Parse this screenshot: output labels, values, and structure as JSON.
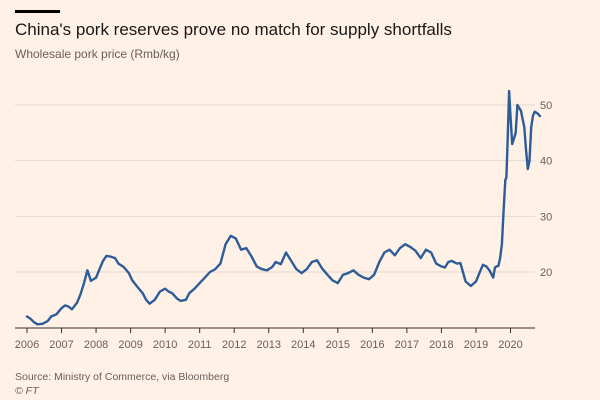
{
  "header": {
    "title": "China's pork reserves prove no match for supply shortfalls",
    "subtitle": "Wholesale pork price (Rmb/kg)"
  },
  "footer": {
    "source": "Source: Ministry of Commerce, via Bloomberg",
    "brand": "© FT"
  },
  "colors": {
    "background": "#fff1e5",
    "line": "#2e5c99",
    "grid": "#e3d9cf",
    "text": "#66605c"
  },
  "chart_data": {
    "type": "line",
    "title": "China's pork reserves prove no match for supply shortfalls",
    "subtitle": "Wholesale pork price (Rmb/kg)",
    "xlabel": "",
    "ylabel": "",
    "x_tick_labels": [
      "2006",
      "2007",
      "2008",
      "2009",
      "2010",
      "2011",
      "2012",
      "2013",
      "2014",
      "2015",
      "2016",
      "2017",
      "2018",
      "2019",
      "2020"
    ],
    "y_tick_labels": [
      "20",
      "30",
      "40",
      "50"
    ],
    "xlim": [
      2006.0,
      2020.85
    ],
    "ylim": [
      10,
      55
    ],
    "grid": true,
    "legend": "none",
    "y_axis_position": "right",
    "series": [
      {
        "x": [
          2006.0,
          2006.1,
          2006.2,
          2006.3,
          2006.45,
          2006.6,
          2006.7,
          2006.85,
          2007.0,
          2007.1,
          2007.2,
          2007.3,
          2007.45,
          2007.55,
          2007.65,
          2007.75,
          2007.85,
          2008.0,
          2008.1,
          2008.2,
          2008.3,
          2008.4,
          2008.55,
          2008.65,
          2008.8,
          2008.95,
          2009.05,
          2009.2,
          2009.35,
          2009.45,
          2009.55,
          2009.7,
          2009.85,
          2010.0,
          2010.1,
          2010.2,
          2010.35,
          2010.45,
          2010.6,
          2010.7,
          2010.85,
          2011.0,
          2011.15,
          2011.3,
          2011.45,
          2011.6,
          2011.75,
          2011.9,
          2012.05,
          2012.2,
          2012.35,
          2012.5,
          2012.65,
          2012.8,
          2012.95,
          2013.1,
          2013.2,
          2013.35,
          2013.5,
          2013.65,
          2013.8,
          2013.95,
          2014.1,
          2014.25,
          2014.4,
          2014.55,
          2014.7,
          2014.85,
          2015.0,
          2015.15,
          2015.3,
          2015.45,
          2015.6,
          2015.75,
          2015.9,
          2016.05,
          2016.2,
          2016.35,
          2016.5,
          2016.65,
          2016.8,
          2016.95,
          2017.1,
          2017.25,
          2017.4,
          2017.55,
          2017.7,
          2017.85,
          2018.0,
          2018.1,
          2018.2,
          2018.3,
          2018.45,
          2018.55,
          2018.7,
          2018.85,
          2019.0,
          2019.1,
          2019.2,
          2019.3,
          2019.4,
          2019.5,
          2019.55,
          2019.6,
          2019.65,
          2019.7,
          2019.75,
          2019.8,
          2019.85,
          2019.88,
          2019.92,
          2019.96,
          2020.0,
          2020.05,
          2020.1,
          2020.15,
          2020.2,
          2020.3,
          2020.4,
          2020.45,
          2020.5,
          2020.55,
          2020.6,
          2020.65,
          2020.7,
          2020.78,
          2020.85
        ],
        "values": [
          12.0,
          11.6,
          11.0,
          10.6,
          10.7,
          11.2,
          12.0,
          12.4,
          13.5,
          14.0,
          13.8,
          13.3,
          14.5,
          16.0,
          18.0,
          20.3,
          18.4,
          19.0,
          20.5,
          22.0,
          22.9,
          22.8,
          22.5,
          21.5,
          20.9,
          19.8,
          18.5,
          17.3,
          16.2,
          15.0,
          14.3,
          15.0,
          16.5,
          17.0,
          16.5,
          16.2,
          15.2,
          14.8,
          15.0,
          16.2,
          17.0,
          18.0,
          19.0,
          20.0,
          20.5,
          21.5,
          25.0,
          26.5,
          26.0,
          24.0,
          24.3,
          22.8,
          21.0,
          20.5,
          20.3,
          20.9,
          21.8,
          21.4,
          23.5,
          22.0,
          20.5,
          19.8,
          20.5,
          21.8,
          22.1,
          20.6,
          19.5,
          18.5,
          18.0,
          19.5,
          19.8,
          20.3,
          19.5,
          19.0,
          18.7,
          19.5,
          21.8,
          23.5,
          24.0,
          23.0,
          24.3,
          25.0,
          24.5,
          23.8,
          22.5,
          24.0,
          23.5,
          21.5,
          21.0,
          20.8,
          21.8,
          22.0,
          21.5,
          21.6,
          18.3,
          17.5,
          18.3,
          19.8,
          21.3,
          21.0,
          20.2,
          19.0,
          20.8,
          21.0,
          21.1,
          22.5,
          25.0,
          31.0,
          36.5,
          37.0,
          44.0,
          52.5,
          48.0,
          43.0,
          44.0,
          45.0,
          50.0,
          49.0,
          46.0,
          42.0,
          38.5,
          40.0,
          46.0,
          48.0,
          48.8,
          48.5,
          48.0
        ]
      }
    ]
  }
}
